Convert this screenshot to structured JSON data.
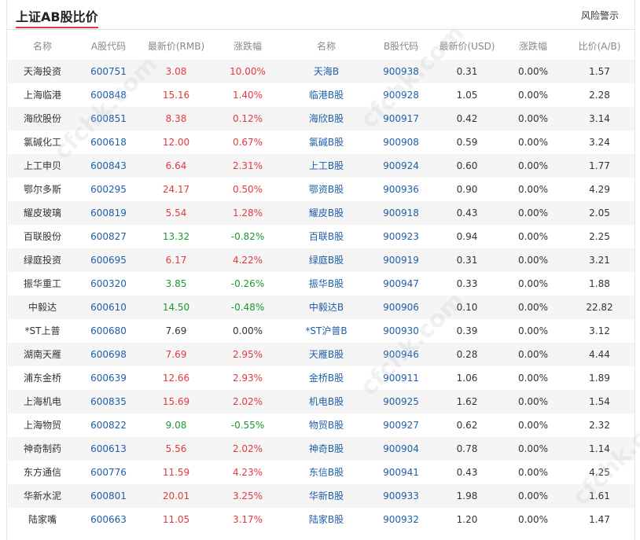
{
  "title": "上证AB股比价",
  "risk_link": "风险警示",
  "columns": [
    "名称",
    "A股代码",
    "最新价(RMB)",
    "涨跌幅",
    "名称",
    "B股代码",
    "最新价(USD)",
    "涨跌幅",
    "比价(A/B)"
  ],
  "colors": {
    "up": "#e2393e",
    "down": "#1a9a2c",
    "link": "#1f5fa8",
    "accent": "#e2393e"
  },
  "rows": [
    {
      "a_name": "天海投资",
      "a_code": "600751",
      "a_price": "3.08",
      "a_chg": "10.00%",
      "a_dir": "up",
      "b_name": "天海B",
      "b_code": "900938",
      "b_price": "0.31",
      "b_chg": "0.00%",
      "ratio": "1.57"
    },
    {
      "a_name": "上海临港",
      "a_code": "600848",
      "a_price": "15.16",
      "a_chg": "1.40%",
      "a_dir": "up",
      "b_name": "临港B股",
      "b_code": "900928",
      "b_price": "1.05",
      "b_chg": "0.00%",
      "ratio": "2.28"
    },
    {
      "a_name": "海欣股份",
      "a_code": "600851",
      "a_price": "8.38",
      "a_chg": "0.12%",
      "a_dir": "up",
      "b_name": "海欣B股",
      "b_code": "900917",
      "b_price": "0.42",
      "b_chg": "0.00%",
      "ratio": "3.14"
    },
    {
      "a_name": "氯碱化工",
      "a_code": "600618",
      "a_price": "12.00",
      "a_chg": "0.67%",
      "a_dir": "up",
      "b_name": "氯碱B股",
      "b_code": "900908",
      "b_price": "0.59",
      "b_chg": "0.00%",
      "ratio": "3.24"
    },
    {
      "a_name": "上工申贝",
      "a_code": "600843",
      "a_price": "6.64",
      "a_chg": "2.31%",
      "a_dir": "up",
      "b_name": "上工B股",
      "b_code": "900924",
      "b_price": "0.60",
      "b_chg": "0.00%",
      "ratio": "1.77"
    },
    {
      "a_name": "鄂尔多斯",
      "a_code": "600295",
      "a_price": "24.17",
      "a_chg": "0.50%",
      "a_dir": "up",
      "b_name": "鄂资B股",
      "b_code": "900936",
      "b_price": "0.90",
      "b_chg": "0.00%",
      "ratio": "4.29"
    },
    {
      "a_name": "耀皮玻璃",
      "a_code": "600819",
      "a_price": "5.54",
      "a_chg": "1.28%",
      "a_dir": "up",
      "b_name": "耀皮B股",
      "b_code": "900918",
      "b_price": "0.43",
      "b_chg": "0.00%",
      "ratio": "2.05"
    },
    {
      "a_name": "百联股份",
      "a_code": "600827",
      "a_price": "13.32",
      "a_chg": "-0.82%",
      "a_dir": "down",
      "b_name": "百联B股",
      "b_code": "900923",
      "b_price": "0.94",
      "b_chg": "0.00%",
      "ratio": "2.25"
    },
    {
      "a_name": "绿庭投资",
      "a_code": "600695",
      "a_price": "6.17",
      "a_chg": "4.22%",
      "a_dir": "up",
      "b_name": "绿庭B股",
      "b_code": "900919",
      "b_price": "0.31",
      "b_chg": "0.00%",
      "ratio": "3.21"
    },
    {
      "a_name": "振华重工",
      "a_code": "600320",
      "a_price": "3.85",
      "a_chg": "-0.26%",
      "a_dir": "down",
      "b_name": "振华B股",
      "b_code": "900947",
      "b_price": "0.33",
      "b_chg": "0.00%",
      "ratio": "1.88"
    },
    {
      "a_name": "中毅达",
      "a_code": "600610",
      "a_price": "14.50",
      "a_chg": "-0.48%",
      "a_dir": "down",
      "b_name": "中毅达B",
      "b_code": "900906",
      "b_price": "0.10",
      "b_chg": "0.00%",
      "ratio": "22.82"
    },
    {
      "a_name": "*ST上普",
      "a_code": "600680",
      "a_price": "7.69",
      "a_chg": "0.00%",
      "a_dir": "flat",
      "b_name": "*ST沪普B",
      "b_code": "900930",
      "b_price": "0.39",
      "b_chg": "0.00%",
      "ratio": "3.12"
    },
    {
      "a_name": "湖南天雁",
      "a_code": "600698",
      "a_price": "7.69",
      "a_chg": "2.95%",
      "a_dir": "up",
      "b_name": "天雁B股",
      "b_code": "900946",
      "b_price": "0.28",
      "b_chg": "0.00%",
      "ratio": "4.44"
    },
    {
      "a_name": "浦东金桥",
      "a_code": "600639",
      "a_price": "12.66",
      "a_chg": "2.93%",
      "a_dir": "up",
      "b_name": "金桥B股",
      "b_code": "900911",
      "b_price": "1.06",
      "b_chg": "0.00%",
      "ratio": "1.89"
    },
    {
      "a_name": "上海机电",
      "a_code": "600835",
      "a_price": "15.69",
      "a_chg": "2.02%",
      "a_dir": "up",
      "b_name": "机电B股",
      "b_code": "900925",
      "b_price": "1.62",
      "b_chg": "0.00%",
      "ratio": "1.54"
    },
    {
      "a_name": "上海物贸",
      "a_code": "600822",
      "a_price": "9.08",
      "a_chg": "-0.55%",
      "a_dir": "down",
      "b_name": "物贸B股",
      "b_code": "900927",
      "b_price": "0.62",
      "b_chg": "0.00%",
      "ratio": "2.32"
    },
    {
      "a_name": "神奇制药",
      "a_code": "600613",
      "a_price": "5.56",
      "a_chg": "2.02%",
      "a_dir": "up",
      "b_name": "神奇B股",
      "b_code": "900904",
      "b_price": "0.78",
      "b_chg": "0.00%",
      "ratio": "1.14"
    },
    {
      "a_name": "东方通信",
      "a_code": "600776",
      "a_price": "11.59",
      "a_chg": "4.23%",
      "a_dir": "up",
      "b_name": "东信B股",
      "b_code": "900941",
      "b_price": "0.43",
      "b_chg": "0.00%",
      "ratio": "4.25"
    },
    {
      "a_name": "华新水泥",
      "a_code": "600801",
      "a_price": "20.01",
      "a_chg": "3.25%",
      "a_dir": "up",
      "b_name": "华新B股",
      "b_code": "900933",
      "b_price": "1.98",
      "b_chg": "0.00%",
      "ratio": "1.61"
    },
    {
      "a_name": "陆家嘴",
      "a_code": "600663",
      "a_price": "11.05",
      "a_chg": "3.17%",
      "a_dir": "up",
      "b_name": "陆家B股",
      "b_code": "900932",
      "b_price": "1.20",
      "b_chg": "0.00%",
      "ratio": "1.47"
    }
  ]
}
